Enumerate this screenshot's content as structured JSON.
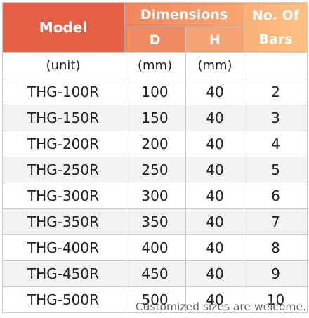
{
  "header": {
    "model": "Model",
    "dimensions": "Dimensions",
    "d": "D",
    "h": "H",
    "bars_line1": "No. Of",
    "bars_line2": "Bars"
  },
  "units": {
    "model": "(unit)",
    "d": "(mm)",
    "h": "(mm)",
    "bars": ""
  },
  "rows": [
    {
      "model": "THG-100R",
      "d": "100",
      "h": "40",
      "bars": "2"
    },
    {
      "model": "THG-150R",
      "d": "150",
      "h": "40",
      "bars": "3"
    },
    {
      "model": "THG-200R",
      "d": "200",
      "h": "40",
      "bars": "4"
    },
    {
      "model": "THG-250R",
      "d": "250",
      "h": "40",
      "bars": "5"
    },
    {
      "model": "THG-300R",
      "d": "300",
      "h": "40",
      "bars": "6"
    },
    {
      "model": "THG-350R",
      "d": "350",
      "h": "40",
      "bars": "7"
    },
    {
      "model": "THG-400R",
      "d": "400",
      "h": "40",
      "bars": "8"
    },
    {
      "model": "THG-450R",
      "d": "450",
      "h": "40",
      "bars": "9"
    },
    {
      "model": "THG-500R",
      "d": "500",
      "h": "40",
      "bars": "10"
    }
  ],
  "note": "Customized sizes are welcome.",
  "colors": {
    "model_header": "#e35f45",
    "dim_header": "#f0855f",
    "bars_header": "#fcc185",
    "stripe": "#f2f2f2"
  }
}
